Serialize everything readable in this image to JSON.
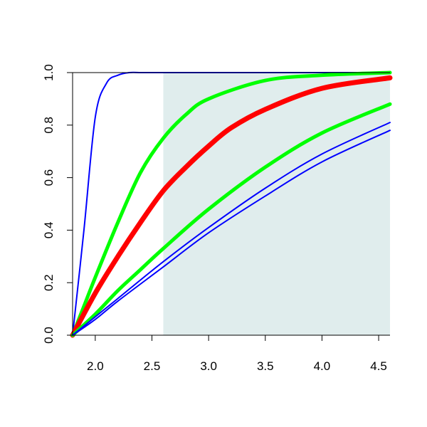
{
  "chart_data": {
    "type": "line",
    "title": "",
    "xlabel": "",
    "ylabel": "",
    "xlim": [
      1.8,
      4.6
    ],
    "ylim": [
      0.0,
      1.0
    ],
    "x_ticks": [
      "2.0",
      "2.5",
      "3.0",
      "3.5",
      "4.0",
      "4.5"
    ],
    "y_ticks": [
      "0.0",
      "0.2",
      "0.4",
      "0.6",
      "0.8",
      "1.0"
    ],
    "grid": false,
    "shaded_region": {
      "x_from": 2.6,
      "x_to": 4.6,
      "color": "#e0eded"
    },
    "series": [
      {
        "color": "#0000ff",
        "x": [
          1.8,
          1.9,
          2.0,
          2.1,
          2.2,
          2.3,
          2.4,
          2.5,
          2.6,
          3.0,
          3.5,
          4.0,
          4.6
        ],
        "y": [
          0.0,
          0.4,
          0.83,
          0.96,
          0.99,
          1.0,
          1.0,
          1.0,
          1.0,
          1.0,
          1.0,
          1.0,
          1.0
        ]
      },
      {
        "color": "#00ff00",
        "x": [
          1.8,
          1.9,
          2.0,
          2.2,
          2.4,
          2.6,
          2.8,
          3.0,
          3.5,
          4.0,
          4.6
        ],
        "y": [
          0.0,
          0.11,
          0.22,
          0.43,
          0.62,
          0.75,
          0.84,
          0.9,
          0.97,
          0.99,
          1.0
        ]
      },
      {
        "color": "#ff0000",
        "x": [
          1.8,
          2.0,
          2.2,
          2.4,
          2.6,
          2.8,
          3.0,
          3.2,
          3.5,
          4.0,
          4.6
        ],
        "y": [
          0.0,
          0.16,
          0.3,
          0.43,
          0.55,
          0.64,
          0.72,
          0.79,
          0.86,
          0.94,
          0.98
        ]
      },
      {
        "color": "#00ff00",
        "x": [
          1.8,
          2.0,
          2.2,
          2.4,
          2.6,
          3.0,
          3.5,
          4.0,
          4.6
        ],
        "y": [
          0.0,
          0.08,
          0.17,
          0.25,
          0.33,
          0.48,
          0.64,
          0.77,
          0.88
        ]
      },
      {
        "color": "#0000ff",
        "x": [
          1.8,
          2.0,
          2.2,
          2.6,
          3.0,
          3.5,
          4.0,
          4.6
        ],
        "y": [
          0.0,
          0.07,
          0.14,
          0.28,
          0.41,
          0.56,
          0.69,
          0.81
        ]
      },
      {
        "color": "#0000ff",
        "x": [
          1.8,
          2.0,
          2.2,
          2.6,
          3.0,
          3.5,
          4.0,
          4.6
        ],
        "y": [
          0.0,
          0.06,
          0.13,
          0.26,
          0.39,
          0.53,
          0.66,
          0.78
        ]
      }
    ]
  }
}
